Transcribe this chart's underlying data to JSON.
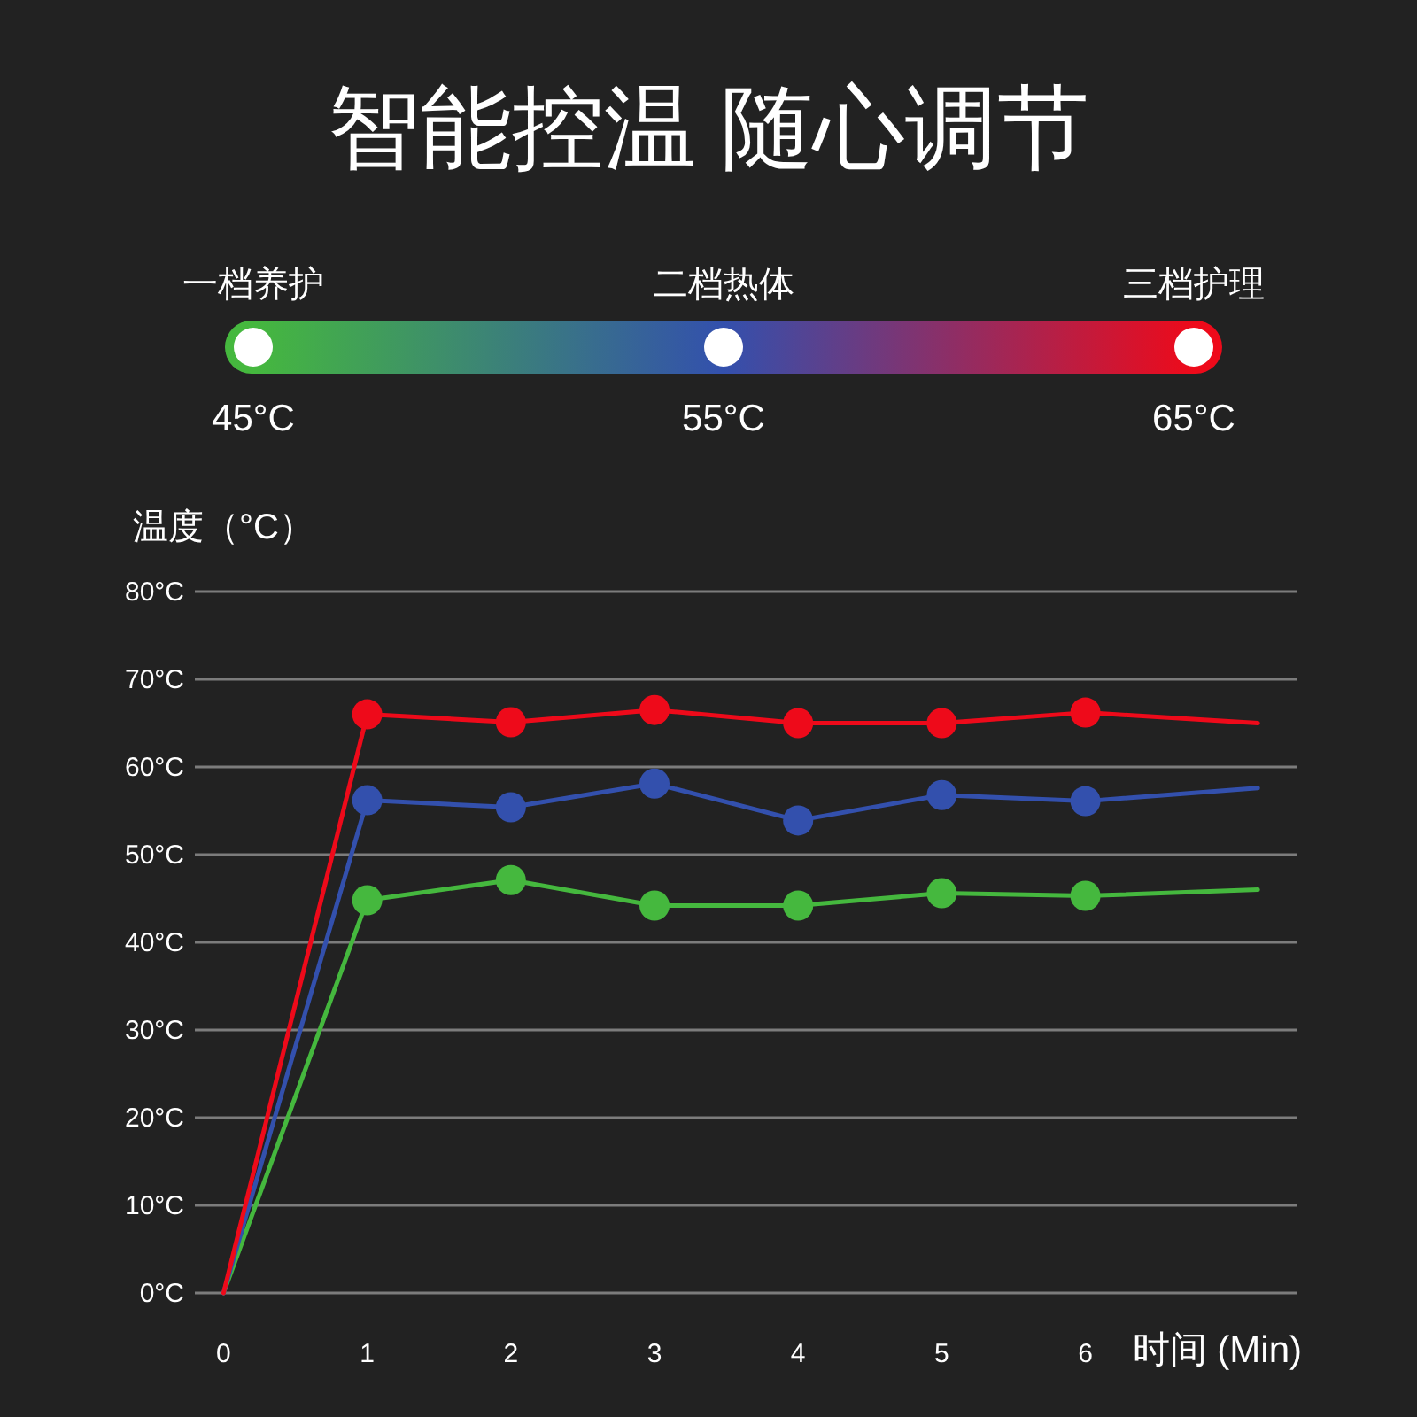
{
  "chart_data": {
    "type": "line",
    "title": "智能控温 随心调节",
    "xlabel": "时间 (Min)",
    "ylabel": "温度（°C）",
    "x": [
      0,
      1,
      2,
      3,
      4,
      5,
      6,
      7.2
    ],
    "series": [
      {
        "color": "#45b83e",
        "values": [
          0,
          44.8,
          47.1,
          44.2,
          44.2,
          45.6,
          45.3,
          46.0
        ]
      },
      {
        "color": "#3350ad",
        "values": [
          0,
          56.2,
          55.4,
          58.1,
          53.9,
          56.8,
          56.1,
          57.6
        ]
      },
      {
        "color": "#ee0a1a",
        "values": [
          0,
          66.0,
          65.1,
          66.5,
          65.0,
          65.0,
          66.2,
          65.0
        ]
      }
    ],
    "annotations": [
      "一档养护",
      "二档热体",
      "三档护理",
      "45°C",
      "55°C",
      "65°C"
    ],
    "xlim": [
      -0.2,
      7.47
    ],
    "xticks": [
      0,
      1,
      2,
      3,
      4,
      5,
      6
    ],
    "ylim": [
      0,
      80
    ],
    "yticks": [
      {
        "value": 0,
        "label": "0°C"
      },
      {
        "value": 10,
        "label": "10°C"
      },
      {
        "value": 20,
        "label": "20°C"
      },
      {
        "value": 30,
        "label": "30°C"
      },
      {
        "value": 40,
        "label": "40°C"
      },
      {
        "value": 50,
        "label": "50°C"
      },
      {
        "value": 60,
        "label": "60°C"
      },
      {
        "value": 70,
        "label": "70°C"
      },
      {
        "value": 80,
        "label": "80°C"
      }
    ],
    "grid": "y",
    "marker": "circle",
    "line_style": "solid"
  }
}
